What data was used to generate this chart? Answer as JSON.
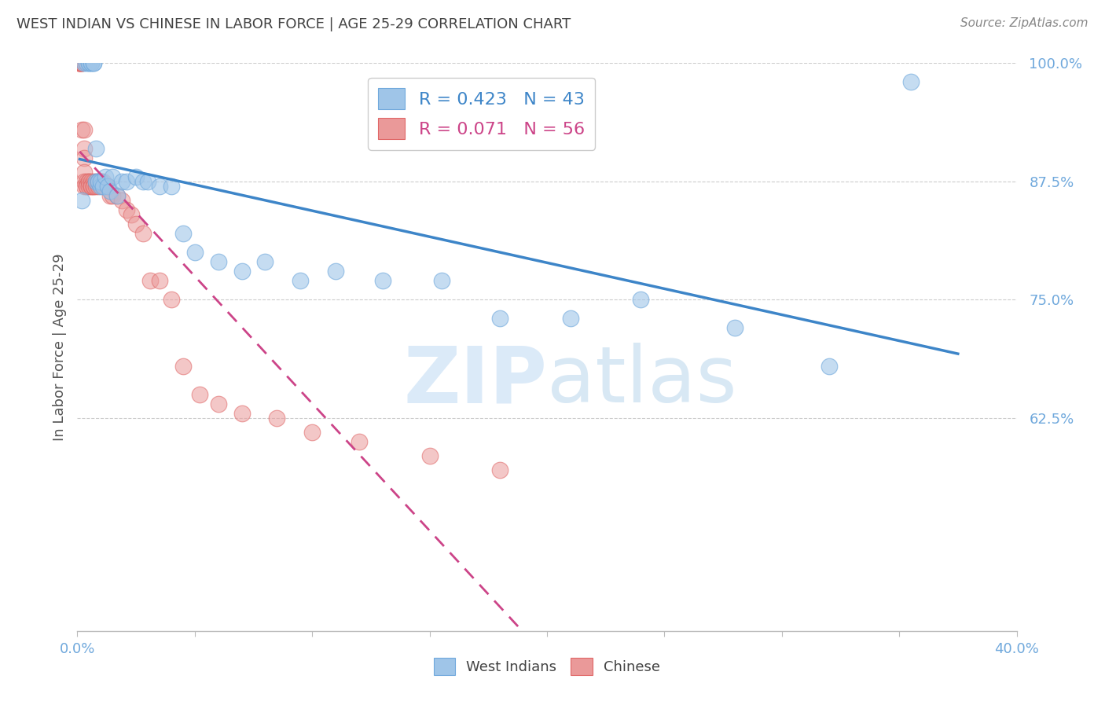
{
  "title": "WEST INDIAN VS CHINESE IN LABOR FORCE | AGE 25-29 CORRELATION CHART",
  "source": "Source: ZipAtlas.com",
  "ylabel": "In Labor Force | Age 25-29",
  "xlim": [
    0.0,
    0.4
  ],
  "ylim": [
    0.4,
    1.0
  ],
  "xticks": [
    0.0,
    0.05,
    0.1,
    0.15,
    0.2,
    0.25,
    0.3,
    0.35,
    0.4
  ],
  "ytick_positions": [
    0.625,
    0.75,
    0.875,
    1.0
  ],
  "ytick_labels": [
    "62.5%",
    "75.0%",
    "87.5%",
    "100.0%"
  ],
  "legend_blue_label": "R = 0.423   N = 43",
  "legend_pink_label": "R = 0.071   N = 56",
  "legend_label_blue": "West Indians",
  "legend_label_pink": "Chinese",
  "watermark_zip": "ZIP",
  "watermark_atlas": "atlas",
  "blue_color": "#9fc5e8",
  "blue_edge_color": "#6fa8dc",
  "pink_color": "#ea9999",
  "pink_edge_color": "#e06666",
  "blue_trend_color": "#3d85c8",
  "pink_trend_color": "#cc4488",
  "title_color": "#434343",
  "axis_label_color": "#6fa8dc",
  "grid_color": "#cccccc",
  "blue_x": [
    0.002,
    0.003,
    0.004,
    0.005,
    0.005,
    0.006,
    0.006,
    0.007,
    0.007,
    0.008,
    0.008,
    0.009,
    0.009,
    0.01,
    0.01,
    0.011,
    0.012,
    0.013,
    0.014,
    0.015,
    0.017,
    0.019,
    0.021,
    0.025,
    0.028,
    0.03,
    0.035,
    0.04,
    0.045,
    0.05,
    0.06,
    0.07,
    0.08,
    0.095,
    0.11,
    0.13,
    0.155,
    0.18,
    0.21,
    0.24,
    0.28,
    0.32,
    0.355
  ],
  "blue_y": [
    0.855,
    1.0,
    1.0,
    1.0,
    1.0,
    1.0,
    1.0,
    1.0,
    1.0,
    0.91,
    0.875,
    0.875,
    0.875,
    0.87,
    0.875,
    0.87,
    0.88,
    0.87,
    0.865,
    0.88,
    0.86,
    0.875,
    0.875,
    0.88,
    0.875,
    0.875,
    0.87,
    0.87,
    0.82,
    0.8,
    0.79,
    0.78,
    0.79,
    0.77,
    0.78,
    0.77,
    0.77,
    0.73,
    0.73,
    0.75,
    0.72,
    0.68,
    0.98
  ],
  "pink_x": [
    0.001,
    0.001,
    0.001,
    0.001,
    0.001,
    0.002,
    0.002,
    0.002,
    0.002,
    0.002,
    0.003,
    0.003,
    0.003,
    0.003,
    0.003,
    0.003,
    0.004,
    0.004,
    0.004,
    0.005,
    0.005,
    0.005,
    0.006,
    0.006,
    0.006,
    0.007,
    0.007,
    0.007,
    0.008,
    0.008,
    0.009,
    0.009,
    0.01,
    0.011,
    0.012,
    0.013,
    0.014,
    0.015,
    0.017,
    0.019,
    0.021,
    0.023,
    0.025,
    0.028,
    0.031,
    0.035,
    0.04,
    0.045,
    0.052,
    0.06,
    0.07,
    0.085,
    0.1,
    0.12,
    0.15,
    0.18
  ],
  "pink_y": [
    1.0,
    1.0,
    1.0,
    1.0,
    1.0,
    1.0,
    1.0,
    1.0,
    1.0,
    0.93,
    0.93,
    0.91,
    0.9,
    0.885,
    0.875,
    0.87,
    0.875,
    0.87,
    0.87,
    0.875,
    0.875,
    0.87,
    0.875,
    0.87,
    0.87,
    0.875,
    0.87,
    0.87,
    0.87,
    0.875,
    0.875,
    0.87,
    0.875,
    0.875,
    0.87,
    0.87,
    0.86,
    0.86,
    0.86,
    0.855,
    0.845,
    0.84,
    0.83,
    0.82,
    0.77,
    0.77,
    0.75,
    0.68,
    0.65,
    0.64,
    0.63,
    0.625,
    0.61,
    0.6,
    0.585,
    0.57
  ]
}
